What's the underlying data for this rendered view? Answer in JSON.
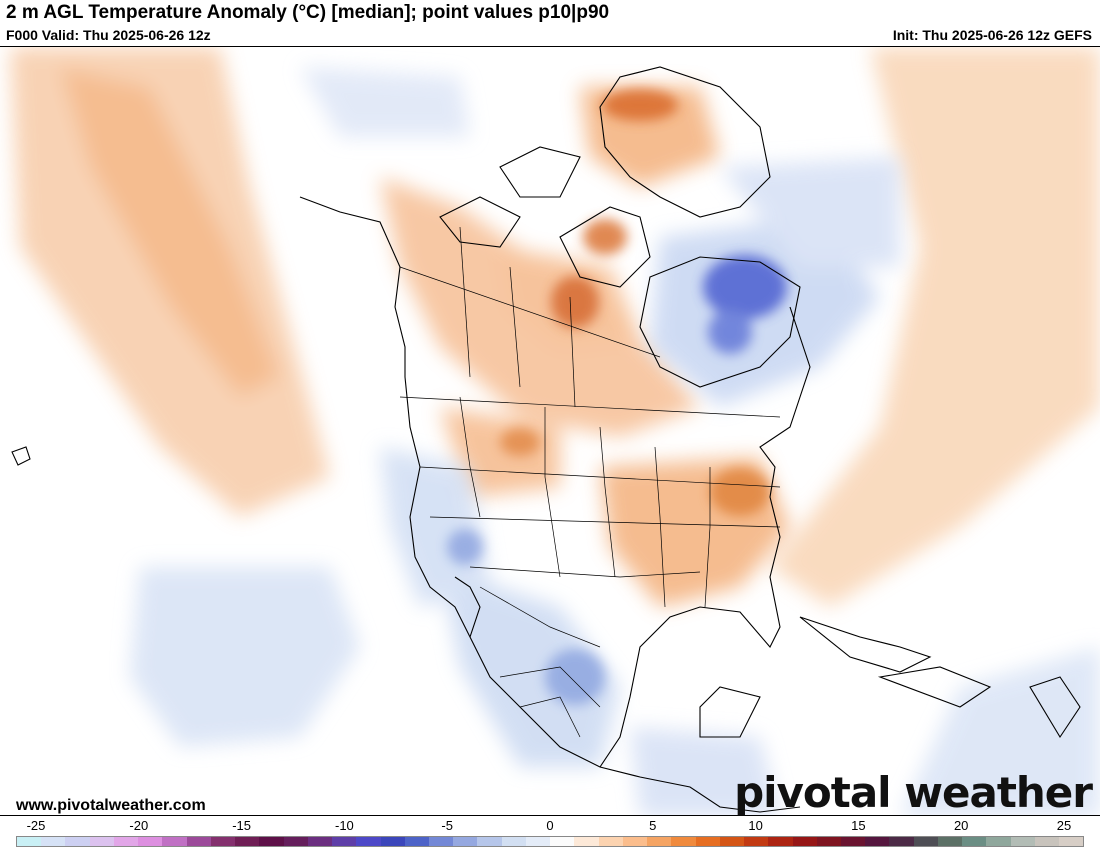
{
  "header": {
    "title": "2 m AGL Temperature Anomaly (°C) [median]; point values p10|p90",
    "valid": "F000 Valid: Thu 2025-06-26 12z",
    "init": "Init: Thu 2025-06-26 12z GEFS"
  },
  "footer": {
    "website": "www.pivotalweather.com",
    "brand": "pivotal weather"
  },
  "colorbar": {
    "tick_labels": [
      "-25",
      "-20",
      "-15",
      "-10",
      "-5",
      "0",
      "5",
      "10",
      "15",
      "20",
      "25"
    ],
    "colors": [
      "#c9f0f5",
      "#d6e2f6",
      "#cdd0f2",
      "#dcc2ef",
      "#e2a6e8",
      "#dd8fe0",
      "#c070c4",
      "#9c4a9a",
      "#84306e",
      "#6f1e55",
      "#5e1048",
      "#651e5c",
      "#6b2e80",
      "#5e3ea8",
      "#4d48c8",
      "#3b46bb",
      "#4d63c8",
      "#7388d6",
      "#95a8e0",
      "#b6c6ea",
      "#d2dff2",
      "#e4ecf8",
      "#fbfbfb",
      "#fde9d8",
      "#fcd3b0",
      "#fbbd8c",
      "#f5a463",
      "#f08a3d",
      "#e66e22",
      "#d45516",
      "#c23a12",
      "#ad2412",
      "#961616",
      "#7f1420",
      "#6a1330",
      "#55163e",
      "#4c2a46",
      "#4e4e55",
      "#5c7066",
      "#6b8e84",
      "#8fa79c",
      "#b2bcb5",
      "#c8c3bc",
      "#d7cec6"
    ]
  },
  "map": {
    "region": "North America",
    "palette": {
      "warm": "#f3b27c",
      "warm_strong": "#e0702a",
      "cool": "#b9cdee",
      "cool_strong": "#4d5fd0",
      "border": "#000000"
    }
  }
}
